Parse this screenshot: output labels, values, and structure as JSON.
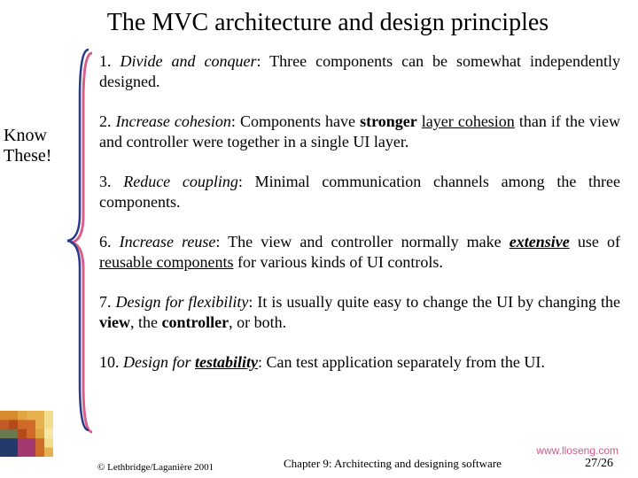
{
  "title": "The MVC architecture and design principles",
  "sidebar": {
    "line1": "Know",
    "line2": "These!"
  },
  "principles": [
    {
      "num": "1.",
      "name": "Divide and conquer",
      "rest_html": ": Three components can be somewhat independently designed."
    },
    {
      "num": "2.",
      "name": "Increase cohesion",
      "rest_html": ": Components have <span class='b'>stronger</span> <span class='u'>layer cohesion</span> than if the view and controller were together in a single UI layer."
    },
    {
      "num": "3.",
      "name": "Reduce coupling",
      "rest_html": ": Minimal communication channels among the three components."
    },
    {
      "num": "6.",
      "name": "Increase reuse",
      "rest_html": ": The view and controller normally make <span class='biu'>extensive</span> use of <span class='u'>reusable components</span> for various kinds of UI controls."
    },
    {
      "num": "7.",
      "name": "Design for flexibility",
      "rest_html": ": It is usually quite easy to change the UI by changing the <span class='b'>view</span>, the <span class='b'>controller</span>, or both."
    },
    {
      "num": "10.",
      "name_html": "Design for <span class='bu'>testability</span>",
      "rest_html": ": Can test application separately from the UI."
    }
  ],
  "footer": {
    "copyright": "© Lethbridge/Laganière 2001",
    "chapter": "Chapter 9: Architecting and designing software",
    "page": "27/26"
  },
  "watermark": "www.lloseng.com",
  "colors": {
    "brace_blue": "#2a3a8a",
    "brace_pink": "#d95f8a",
    "watermark": "#cc5a88"
  },
  "corner_image": {
    "rows": [
      [
        "#d88a2e",
        "#d88a2e",
        "#e0a642",
        "#e6b14e",
        "#e6b14e",
        "#f2dd8e"
      ],
      [
        "#c15a24",
        "#b44a1c",
        "#cf6a28",
        "#cf6a28",
        "#e6b14e",
        "#f2dd8e"
      ],
      [
        "#6a7a4e",
        "#6a7a4e",
        "#b44a1c",
        "#cf6a28",
        "#e0a642",
        "#f7e8a6"
      ],
      [
        "#233a6a",
        "#233a6a",
        "#a23a72",
        "#a23a72",
        "#cf6a28",
        "#f2dd8e"
      ],
      [
        "#233a6a",
        "#233a6a",
        "#a23a72",
        "#a23a72",
        "#cf6a28",
        "#e6b14e"
      ]
    ]
  }
}
